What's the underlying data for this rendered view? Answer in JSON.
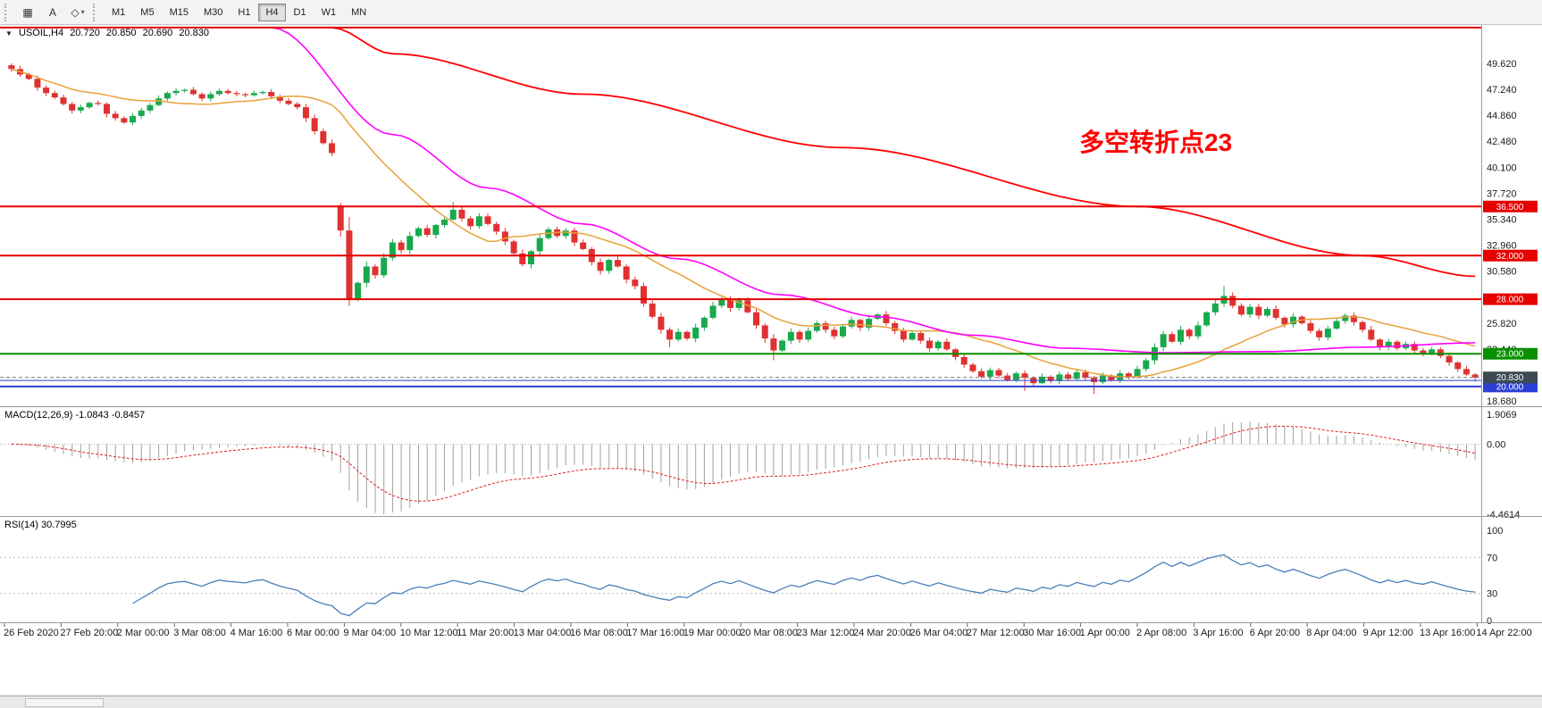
{
  "toolbar": {
    "tools": [
      {
        "name": "tile-windows-icon",
        "glyph": "▦"
      },
      {
        "name": "text-annotation-icon",
        "glyph": "A"
      },
      {
        "name": "objects-icon",
        "glyph": "◇",
        "caret": "▾"
      }
    ],
    "timeframes": [
      "M1",
      "M5",
      "M15",
      "M30",
      "H1",
      "H4",
      "D1",
      "W1",
      "MN"
    ],
    "active_timeframe": "H4"
  },
  "chart_data": {
    "type": "candlestick",
    "symbol": "USOIL,H4",
    "ohlc": {
      "open": "20.720",
      "high": "20.850",
      "low": "20.690",
      "close": "20.830"
    },
    "annotation": {
      "text": "多空转折点23",
      "color": "#FF0000"
    },
    "colors": {
      "up": "#17A94C",
      "down": "#E03131",
      "ma_fast": "#E8A23B",
      "ma_mid": "#FF00FF",
      "ma_slow": "#FF0000",
      "rsi": "#4A7EBB",
      "macd_hist": "#A0A0A0",
      "macd_signal": "#E02020"
    },
    "price_axis_labels": [
      "49.620",
      "47.240",
      "44.860",
      "42.480",
      "40.100",
      "37.720",
      "35.340",
      "32.960",
      "30.580",
      "25.820",
      "23.440",
      "18.680"
    ],
    "price_axis_values": [
      49.62,
      47.24,
      44.86,
      42.48,
      40.1,
      37.72,
      35.34,
      32.96,
      30.58,
      25.82,
      23.44,
      18.68
    ],
    "hlines": [
      {
        "price": 52.9,
        "color": "#E60000",
        "width": 2
      },
      {
        "price": 36.5,
        "label": "36.500",
        "color": "#E60000",
        "width": 2
      },
      {
        "price": 32.0,
        "label": "32.000",
        "color": "#E60000",
        "width": 2
      },
      {
        "price": 28.0,
        "label": "28.000",
        "color": "#E60000",
        "width": 2
      },
      {
        "price": 23.0,
        "label": "23.000",
        "color": "#089000",
        "width": 2
      },
      {
        "price": 20.55,
        "color": "#2B3FD6",
        "width": 1
      },
      {
        "price": 20.0,
        "label": "20.000",
        "color": "#2B3FD6",
        "width": 2
      }
    ],
    "bid": {
      "price": 20.83,
      "label": "20.830",
      "color": "#3C4A52"
    },
    "candles": {
      "first_open": 49.45,
      "closes": [
        49.1,
        48.6,
        48.2,
        47.4,
        46.9,
        46.5,
        45.9,
        45.3,
        45.6,
        46.0,
        45.9,
        45.0,
        44.6,
        44.2,
        44.8,
        45.3,
        45.8,
        46.4,
        46.9,
        47.1,
        47.2,
        46.8,
        46.4,
        46.8,
        47.1,
        46.9,
        46.8,
        46.7,
        46.9,
        47.0,
        46.6,
        46.2,
        45.9,
        45.6,
        44.6,
        43.4,
        42.3,
        41.4,
        34.3,
        28.0,
        29.5,
        31.0,
        30.2,
        31.8,
        33.2,
        32.5,
        33.8,
        34.5,
        33.9,
        34.8,
        35.3,
        36.2,
        35.4,
        34.7,
        35.6,
        34.9,
        34.2,
        33.3,
        32.2,
        31.2,
        32.4,
        33.6,
        34.4,
        33.8,
        34.3,
        33.2,
        32.6,
        31.4,
        30.6,
        31.6,
        31.0,
        29.8,
        29.2,
        27.6,
        26.4,
        25.2,
        24.3,
        25.0,
        24.4,
        25.4,
        26.3,
        27.4,
        28.0,
        27.2,
        27.9,
        26.8,
        25.6,
        24.4,
        23.3,
        24.2,
        25.0,
        24.3,
        25.1,
        25.8,
        25.2,
        24.6,
        25.5,
        26.1,
        25.4,
        26.2,
        26.6,
        25.8,
        25.1,
        24.3,
        24.9,
        24.2,
        23.5,
        24.1,
        23.4,
        22.7,
        22.0,
        21.4,
        20.9,
        21.5,
        21.0,
        20.6,
        21.2,
        20.8,
        20.3,
        20.9,
        20.5,
        21.1,
        20.7,
        21.3,
        20.8,
        20.4,
        21.0,
        20.6,
        21.2,
        20.9,
        21.6,
        22.4,
        23.6,
        24.8,
        24.1,
        25.2,
        24.6,
        25.6,
        26.8,
        27.6,
        28.3,
        27.4,
        26.6,
        27.3,
        26.5,
        27.1,
        26.3,
        25.7,
        26.4,
        25.8,
        25.1,
        24.5,
        25.3,
        26.0,
        26.5,
        25.9,
        25.2,
        24.3,
        23.6,
        24.1,
        23.5,
        23.9,
        23.3,
        23.0,
        23.4,
        22.8,
        22.2,
        21.6,
        21.1,
        20.83
      ],
      "open_overrides": {
        "38": 36.6
      },
      "high_overrides": {
        "0": 49.62,
        "51": 36.9,
        "140": 29.2
      },
      "low_overrides": {
        "39": 27.4,
        "76": 23.6,
        "88": 22.4,
        "117": 19.6,
        "125": 19.3,
        "169": 20.45
      }
    },
    "ma_slow_anchors": [
      [
        37,
        52.9
      ],
      [
        44,
        50.5
      ],
      [
        66,
        46.8
      ],
      [
        96,
        41.9
      ],
      [
        130,
        36.5
      ],
      [
        156,
        32.0
      ],
      [
        169,
        30.1
      ]
    ],
    "ma_mid_anchors": [
      [
        30,
        52.9
      ],
      [
        44,
        43.1
      ],
      [
        55,
        38.2
      ],
      [
        66,
        34.9
      ],
      [
        77,
        31.7
      ],
      [
        89,
        28.4
      ],
      [
        100,
        26.4
      ],
      [
        111,
        24.7
      ],
      [
        122,
        23.5
      ],
      [
        133,
        23.1
      ],
      [
        145,
        23.2
      ],
      [
        156,
        23.6
      ],
      [
        169,
        24.0
      ]
    ],
    "ma_fast_period": 18,
    "macd": {
      "header": "MACD(12,26,9) -1.0843 -0.8457",
      "axis_labels": [
        "1.9069",
        "0.00",
        "-4.4614"
      ],
      "max": 1.9069,
      "min": -4.4614,
      "fast": 12,
      "slow": 26,
      "signal": 9
    },
    "rsi": {
      "header": "RSI(14) 30.7995",
      "axis_labels": [
        "100",
        "70",
        "30",
        "0"
      ],
      "axis_values": [
        100,
        70,
        30,
        0
      ],
      "levels": [
        70,
        30
      ],
      "period": 14,
      "last": 30.7995
    },
    "time_labels": [
      "26 Feb 2020",
      "27 Feb 20:00",
      "2 Mar 00:00",
      "3 Mar 08:00",
      "4 Mar 16:00",
      "6 Mar 00:00",
      "9 Mar 04:00",
      "10 Mar 12:00",
      "11 Mar 20:00",
      "13 Mar 04:00",
      "16 Mar 08:00",
      "17 Mar 16:00",
      "19 Mar 00:00",
      "20 Mar 08:00",
      "23 Mar 12:00",
      "24 Mar 20:00",
      "26 Mar 04:00",
      "27 Mar 12:00",
      "30 Mar 16:00",
      "1 Apr 00:00",
      "2 Apr 08:00",
      "3 Apr 16:00",
      "6 Apr 20:00",
      "8 Apr 04:00",
      "9 Apr 12:00",
      "13 Apr 16:00",
      "14 Apr 22:00"
    ]
  }
}
